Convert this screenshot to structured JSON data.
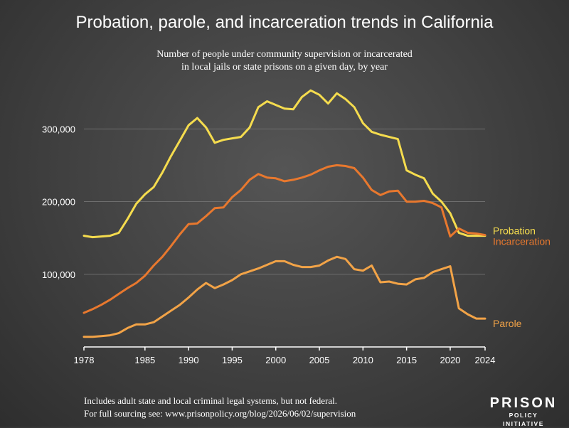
{
  "header": {
    "title": "Probation, parole, and incarceration trends in California",
    "subtitle_line1": "Number of people under community supervision or incarcerated",
    "subtitle_line2": "in local jails or state prisons on a given day, by year"
  },
  "footer": {
    "note_line1": "Includes adult state and local criminal legal systems, but not federal.",
    "note_line2": "For full sourcing see: www.prisonpolicy.org/blog/2026/06/02/supervision",
    "logo_top": "PRISON",
    "logo_bottom": "POLICY INITIATIVE"
  },
  "chart_data": {
    "type": "line",
    "title": "Probation, parole, and incarceration trends in California",
    "subtitle": "Number of people under community supervision or incarcerated in local jails or state prisons on a given day, by year",
    "xlabel": "",
    "ylabel": "",
    "xlim": [
      1978,
      2024
    ],
    "ylim": [
      0,
      360000
    ],
    "x_ticks": [
      1978,
      1985,
      1990,
      1995,
      2000,
      2005,
      2010,
      2015,
      2020,
      2024
    ],
    "y_ticks": [
      100000,
      200000,
      300000
    ],
    "y_tick_labels": [
      "100,000",
      "200,000",
      "300,000"
    ],
    "grid": "horizontal",
    "legend": "end-of-line labels",
    "background": "#444444",
    "x": [
      1978,
      1979,
      1980,
      1981,
      1982,
      1983,
      1984,
      1985,
      1986,
      1987,
      1988,
      1989,
      1990,
      1991,
      1992,
      1993,
      1994,
      1995,
      1996,
      1997,
      1998,
      1999,
      2000,
      2001,
      2002,
      2003,
      2004,
      2005,
      2006,
      2007,
      2008,
      2009,
      2010,
      2011,
      2012,
      2013,
      2014,
      2015,
      2016,
      2017,
      2018,
      2019,
      2020,
      2021,
      2022,
      2023,
      2024
    ],
    "series": [
      {
        "name": "Probation",
        "color": "#f5dc4e",
        "values": [
          153000,
          151000,
          152000,
          153000,
          157000,
          176000,
          197000,
          210000,
          220000,
          240000,
          263000,
          284000,
          305000,
          315000,
          302000,
          281000,
          285000,
          287000,
          289000,
          302000,
          330000,
          338000,
          333000,
          328000,
          327000,
          344000,
          353000,
          347000,
          335000,
          349000,
          341000,
          330000,
          308000,
          296000,
          292000,
          289000,
          286000,
          243000,
          237000,
          232000,
          211000,
          200000,
          184000,
          157000,
          153000,
          153000,
          153000
        ]
      },
      {
        "name": "Incarceration",
        "color": "#e8782e",
        "values": [
          47000,
          52000,
          58000,
          65000,
          73000,
          81000,
          88000,
          98000,
          112000,
          124000,
          139000,
          155000,
          169000,
          170000,
          180000,
          191000,
          192000,
          206000,
          216000,
          230000,
          238000,
          233000,
          232000,
          228000,
          230000,
          233000,
          237000,
          243000,
          248000,
          250000,
          249000,
          246000,
          233000,
          216000,
          209000,
          214000,
          215000,
          200000,
          200000,
          201000,
          198000,
          192000,
          152000,
          163000,
          157000,
          156000,
          154000
        ]
      },
      {
        "name": "Parole",
        "color": "#f2a347",
        "values": [
          14000,
          14000,
          15000,
          16000,
          19000,
          26000,
          31000,
          31000,
          34000,
          42000,
          50000,
          58000,
          68000,
          79000,
          88000,
          81000,
          86000,
          92000,
          100000,
          104000,
          108000,
          113000,
          118000,
          118000,
          113000,
          110000,
          110000,
          112000,
          119000,
          124000,
          121000,
          107000,
          105000,
          112000,
          89000,
          90000,
          87000,
          86000,
          93000,
          95000,
          103000,
          107000,
          111000,
          53000,
          45000,
          39000,
          39000
        ]
      }
    ]
  }
}
